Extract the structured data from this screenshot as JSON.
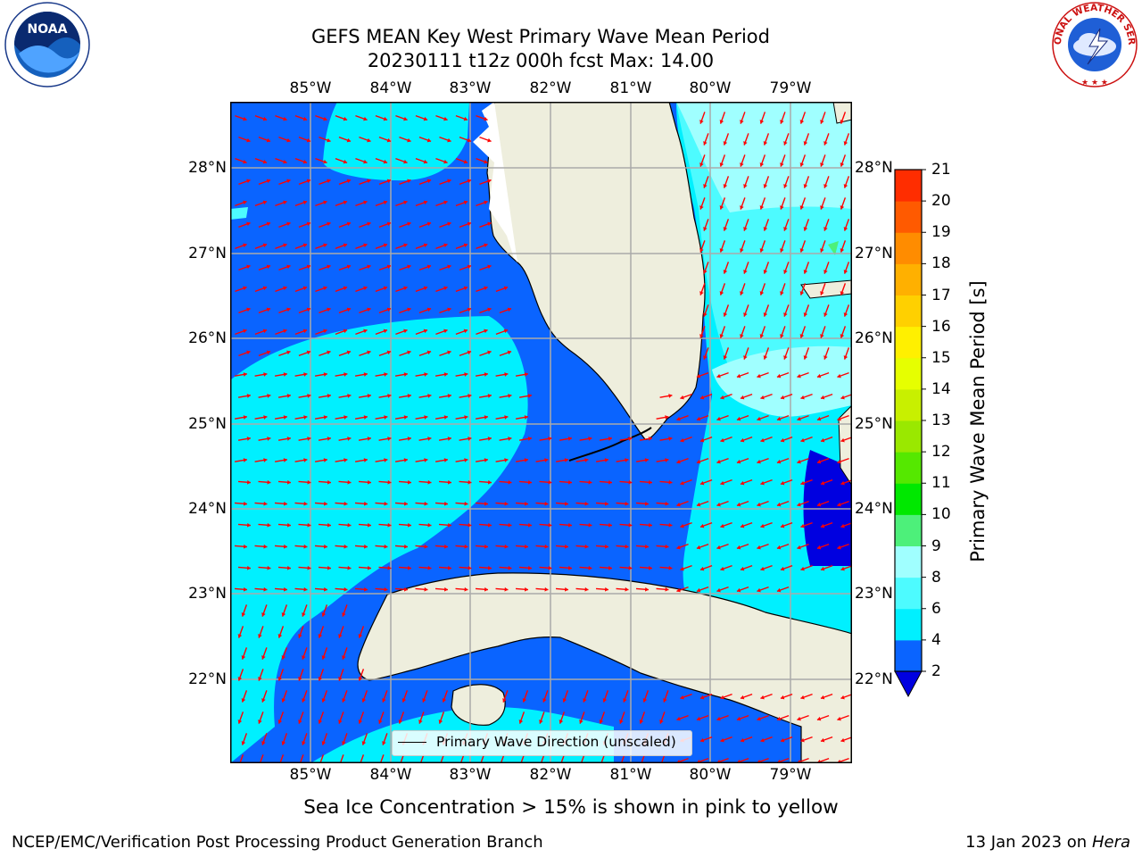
{
  "header": {
    "title_line1": "GEFS MEAN Key West Primary Wave Mean Period",
    "title_line2": "20230111 t12z 000h fcst   Max: 14.00"
  },
  "logos": {
    "left": {
      "text": "NOAA",
      "ring_text": "NATIONAL OCEANIC AND ATMOSPHERIC ADMINISTRATION · U.S. DEPARTMENT OF COMMERCE"
    },
    "right": {
      "ring_text": "NATIONAL WEATHER SERVICE"
    }
  },
  "map": {
    "lon_labels": [
      "85°W",
      "84°W",
      "83°W",
      "82°W",
      "81°W",
      "80°W",
      "79°W"
    ],
    "lat_labels": [
      "28°N",
      "27°N",
      "26°N",
      "25°N",
      "24°N",
      "23°N",
      "22°N"
    ],
    "legend_label": "Primary Wave Direction (unscaled)"
  },
  "colorbar": {
    "label": "Primary Wave Mean Period [s]",
    "ticks": [
      "2",
      "4",
      "6",
      "8",
      "9",
      "10",
      "11",
      "12",
      "13",
      "14",
      "15",
      "16",
      "17",
      "18",
      "19",
      "20",
      "21"
    ],
    "colors": [
      "#0a64ff",
      "#00f0ff",
      "#4dfbff",
      "#a0ffff",
      "#4df07a",
      "#00e800",
      "#55e800",
      "#9ae800",
      "#c8f000",
      "#e6ff00",
      "#fff000",
      "#ffd000",
      "#ffb000",
      "#ff8c00",
      "#ff5a00",
      "#ff2d00",
      "#ff0000"
    ],
    "extend_color": "#0000e0"
  },
  "notes": {
    "sea_ice": "Sea Ice Concentration > 15% is shown in pink to yellow",
    "credit": "NCEP/EMC/Verification Post Processing Product Generation Branch",
    "date_prefix": "13 Jan 2023 on ",
    "machine": "Hera"
  }
}
